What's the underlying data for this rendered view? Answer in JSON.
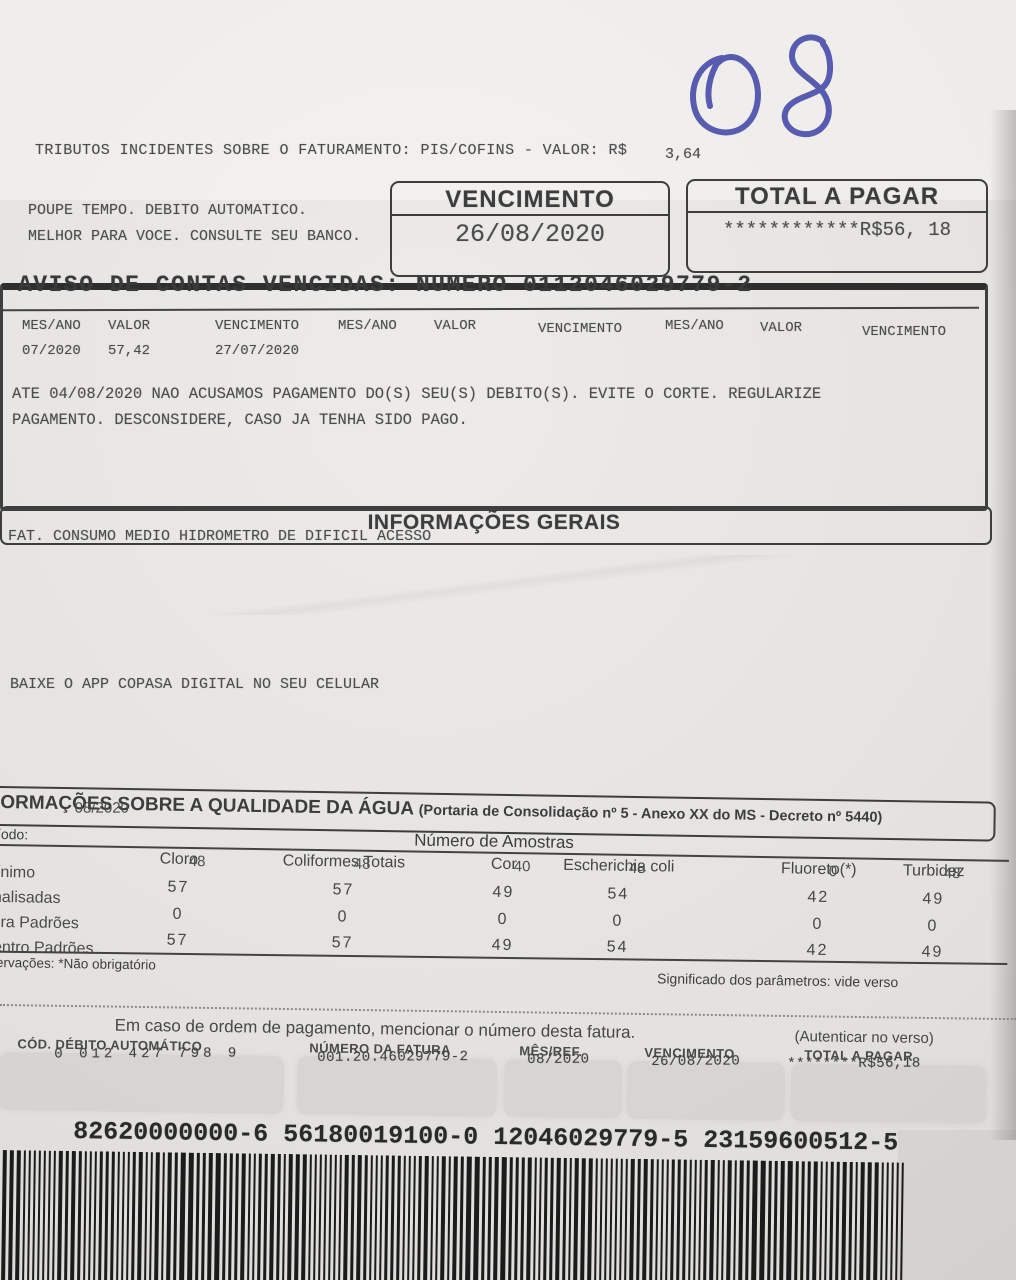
{
  "note": {
    "text": "08",
    "ink_color": "#4448a8"
  },
  "top": {
    "tributos_label": "TRIBUTOS INCIDENTES SOBRE O FATURAMENTO: PIS/COFINS - VALOR: R$",
    "tributos_value": "3,64",
    "poupe_line1": "POUPE TEMPO. DEBITO AUTOMATICO.",
    "poupe_line2": "MELHOR PARA VOCE. CONSULTE SEU BANCO.",
    "vencimento": {
      "label": "VENCIMENTO",
      "value": "26/08/2020"
    },
    "total": {
      "label": "TOTAL A PAGAR",
      "value": "************R$56, 18"
    }
  },
  "aviso": {
    "title": "AVISO DE CONTAS VENCIDAS: NUMERO 0112046029779-2",
    "headers": [
      "MES/ANO",
      "VALOR",
      "VENCIMENTO",
      "MES/ANO",
      "VALOR",
      "VENCIMENTO",
      "MES/ANO",
      "VALOR",
      "VENCIMENTO"
    ],
    "row": [
      "07/2020",
      "57,42",
      "27/07/2020"
    ],
    "msg1": "ATE 04/08/2020 NAO ACUSAMOS PAGAMENTO DO(S) SEU(S) DEBITO(S). EVITE O CORTE. REGULARIZE",
    "msg2": "PAGAMENTO. DESCONSIDERE, CASO JA TENHA SIDO PAGO."
  },
  "gerais": {
    "title": "INFORMAÇÕES GERAIS",
    "fat": "FAT. CONSUMO MEDIO HIDROMETRO DE DIFICIL ACESSO",
    "app": "BAIXE O APP COPASA DIGITAL NO SEU CELULAR"
  },
  "qualidade": {
    "title": "INFORMAÇÕES SOBRE A QUALIDADE DA ÁGUA",
    "subtitle": "(Portaria de Consolidação nº 5 - Anexo XX do MS - Decreto nº 5440)",
    "period_overprint": "08/2020",
    "period_label": "Período:",
    "samples_title": "Número de Amostras",
    "columns": [
      "Cloro",
      "Coliformes Totais",
      "Cor",
      "Escherichia coli",
      "Fluoreto(*)",
      "Turbidez"
    ],
    "minimo_overprint": [
      "48",
      "48",
      "40",
      "48",
      "0",
      "48"
    ],
    "row_labels": [
      "Mínimo",
      "Analisadas",
      "Fora Padrões",
      "Dentro Padrões"
    ],
    "rows": [
      [
        "57",
        "57",
        "49",
        "54",
        "42",
        "49"
      ],
      [
        "0",
        "0",
        "0",
        "0",
        "0",
        "0"
      ],
      [
        "57",
        "57",
        "49",
        "54",
        "42",
        "49"
      ]
    ],
    "obs": "Observações: *Não obrigatório",
    "significado": "Significado dos parâmetros: vide verso"
  },
  "payment": {
    "ordem": "Em caso de ordem de pagamento, mencionar o número desta fatura.",
    "autenticar": "(Autenticar no verso)",
    "fields": [
      {
        "label": "CÓD. DÉBITO AUTOMÁTICO",
        "value": "0 012 427 798 9"
      },
      {
        "label": "NÚMERO DA FATURA",
        "value": "001.20.46029779-2"
      },
      {
        "label": "MÊS/REF.",
        "value": "08/2020"
      },
      {
        "label": "VENCIMENTO",
        "value": "26/08/2020"
      },
      {
        "label": "TOTAL A PAGAR",
        "value": "********R$56,18"
      }
    ],
    "barcode_digits": "82620000000-6 56180019100-0 12046029779-5 23159600512-5"
  }
}
